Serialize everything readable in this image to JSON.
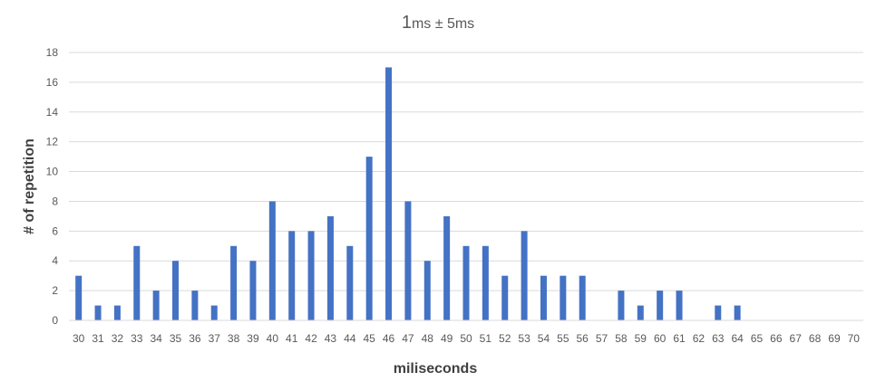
{
  "chart_data": {
    "type": "bar",
    "title_main": "1",
    "title_rest": "ms ± 5ms",
    "xlabel": "miliseconds",
    "ylabel": "# of repetition",
    "ylim": [
      0,
      18
    ],
    "yticks": [
      "0",
      "2",
      "4",
      "6",
      "8",
      "10",
      "12",
      "14",
      "16",
      "18"
    ],
    "grid": true,
    "legend": "none",
    "bar_color": "#4472C4",
    "categories": [
      "30",
      "31",
      "32",
      "33",
      "34",
      "35",
      "36",
      "37",
      "38",
      "39",
      "40",
      "41",
      "42",
      "43",
      "44",
      "45",
      "46",
      "47",
      "48",
      "49",
      "50",
      "51",
      "52",
      "53",
      "54",
      "55",
      "56",
      "57",
      "58",
      "59",
      "60",
      "61",
      "62",
      "63",
      "64",
      "65",
      "66",
      "67",
      "68",
      "69",
      "70"
    ],
    "values": [
      3,
      1,
      1,
      5,
      2,
      4,
      2,
      1,
      5,
      4,
      8,
      6,
      6,
      7,
      5,
      11,
      17,
      8,
      4,
      7,
      5,
      5,
      3,
      6,
      3,
      3,
      3,
      0,
      2,
      1,
      2,
      2,
      0,
      1,
      1,
      0,
      0,
      0,
      0,
      0,
      0
    ]
  }
}
